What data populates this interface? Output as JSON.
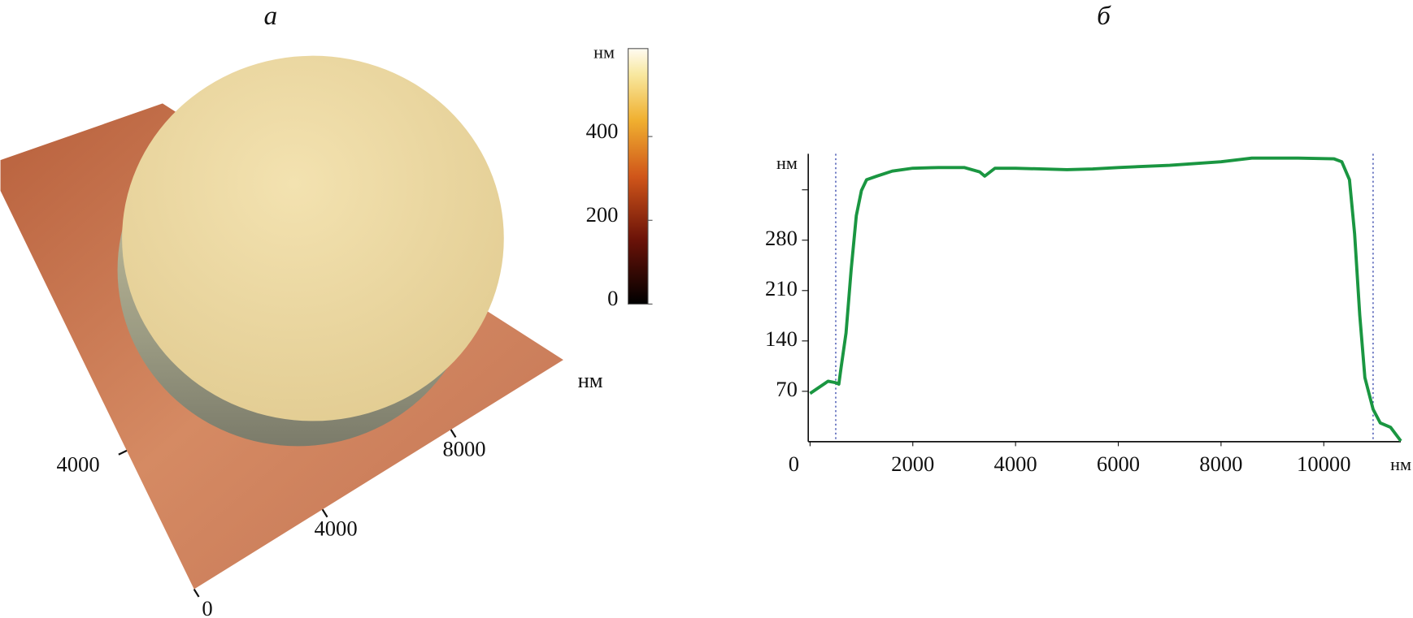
{
  "chart_data": [
    {
      "type": "surface",
      "title": "а",
      "xlim": [
        0,
        11500
      ],
      "xticks": [
        0,
        4000,
        8000
      ],
      "xlabel": "нм",
      "ylim": [
        0,
        11500
      ],
      "yticks": [
        4000
      ],
      "colorbar": {
        "label": "нм",
        "lim": [
          0,
          610
        ],
        "ticks": [
          0,
          200,
          400
        ]
      }
    },
    {
      "type": "line",
      "title": "б",
      "xlabel": "нм",
      "ylabel": "нм",
      "xlim": [
        0,
        11500
      ],
      "xticks": [
        0,
        2000,
        4000,
        6000,
        8000,
        10000
      ],
      "ylim": [
        0,
        400
      ],
      "yticks": [
        70,
        140,
        210,
        280
      ],
      "yticks_unlabeled": [
        350
      ],
      "markers": [
        500,
        10960
      ],
      "series": [
        {
          "color": "#1a9641",
          "x": [
            0,
            350,
            500,
            560,
            600,
            700,
            800,
            900,
            1000,
            1100,
            1300,
            1600,
            2000,
            2500,
            3000,
            3300,
            3400,
            3600,
            4000,
            5000,
            5500,
            6000,
            7000,
            8000,
            8600,
            9500,
            10200,
            10350,
            10500,
            10600,
            10700,
            10800,
            10960,
            11100,
            11300,
            11500
          ],
          "values": [
            67,
            84,
            82,
            80,
            101,
            151,
            239,
            314,
            349,
            364,
            369,
            376,
            380,
            381,
            381,
            375,
            369,
            380,
            380,
            378,
            379,
            381,
            384,
            389,
            394,
            394,
            393,
            389,
            364,
            289,
            176,
            89,
            45,
            26,
            20,
            1
          ]
        }
      ]
    }
  ]
}
